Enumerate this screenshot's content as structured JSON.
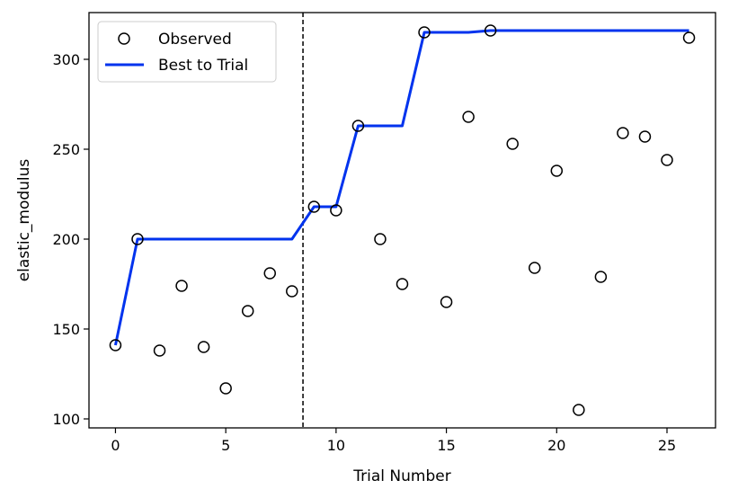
{
  "chart_data": {
    "type": "scatter",
    "xlabel": "Trial Number",
    "ylabel": "elastic_modulus",
    "xlim": [
      -1.2,
      27.2
    ],
    "ylim": [
      95,
      326
    ],
    "xticks": [
      0,
      5,
      10,
      15,
      20,
      25
    ],
    "yticks": [
      100,
      150,
      200,
      250,
      300
    ],
    "grid": false,
    "legend_position": "top-left",
    "vline_x": 8.5,
    "series": [
      {
        "name": "Observed",
        "kind": "scatter",
        "marker": "open-circle",
        "color": "#000000",
        "x": [
          0,
          1,
          2,
          3,
          4,
          5,
          6,
          7,
          8,
          9,
          10,
          11,
          12,
          13,
          14,
          15,
          16,
          17,
          18,
          19,
          20,
          21,
          22,
          23,
          24,
          25,
          26
        ],
        "y": [
          141,
          200,
          138,
          174,
          140,
          117,
          160,
          181,
          171,
          218,
          216,
          263,
          200,
          175,
          315,
          165,
          268,
          316,
          253,
          184,
          238,
          105,
          179,
          259,
          257,
          244,
          312
        ]
      },
      {
        "name": "Best to Trial",
        "kind": "line",
        "color": "#0033ee",
        "x": [
          0,
          1,
          2,
          3,
          4,
          5,
          6,
          7,
          8,
          9,
          10,
          11,
          12,
          13,
          14,
          15,
          16,
          17,
          18,
          19,
          20,
          21,
          22,
          23,
          24,
          25,
          26
        ],
        "y": [
          141,
          200,
          200,
          200,
          200,
          200,
          200,
          200,
          200,
          218,
          218,
          263,
          263,
          263,
          315,
          315,
          315,
          316,
          316,
          316,
          316,
          316,
          316,
          316,
          316,
          316,
          316
        ]
      }
    ]
  }
}
